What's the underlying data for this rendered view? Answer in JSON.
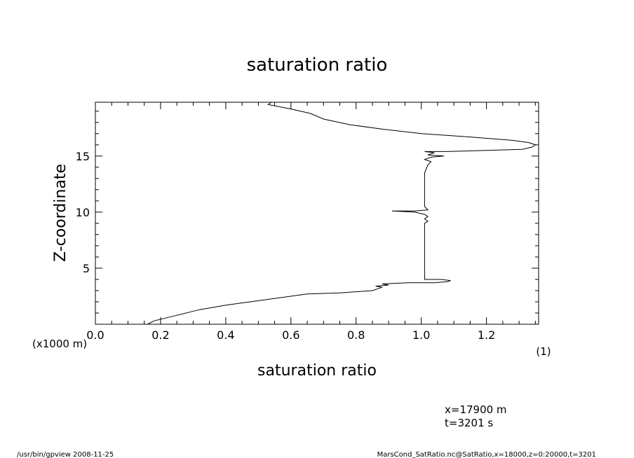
{
  "chart_data": {
    "type": "line",
    "title": "saturation ratio",
    "xlabel": "saturation ratio",
    "ylabel": "Z-coordinate",
    "x_unit": "(1)",
    "y_unit": "(x1000 m)",
    "xlim": [
      0.0,
      1.36
    ],
    "ylim": [
      0,
      19.8
    ],
    "x_ticks": [
      0.0,
      0.2,
      0.4,
      0.6,
      0.8,
      1.0,
      1.2
    ],
    "x_tick_labels": [
      "0.0",
      "0.2",
      "0.4",
      "0.6",
      "0.8",
      "1.0",
      "1.2"
    ],
    "y_ticks": [
      5,
      10,
      15
    ],
    "y_tick_labels": [
      "5",
      "10",
      "15"
    ],
    "grid": false,
    "series": [
      {
        "points": [
          [
            0.16,
            0.0
          ],
          [
            0.18,
            0.3
          ],
          [
            0.25,
            0.8
          ],
          [
            0.32,
            1.3
          ],
          [
            0.4,
            1.7
          ],
          [
            0.5,
            2.1
          ],
          [
            0.6,
            2.5
          ],
          [
            0.65,
            2.7
          ],
          [
            0.75,
            2.8
          ],
          [
            0.85,
            3.0
          ],
          [
            0.88,
            3.3
          ],
          [
            0.86,
            3.4
          ],
          [
            0.9,
            3.5
          ],
          [
            0.88,
            3.6
          ],
          [
            0.96,
            3.7
          ],
          [
            1.04,
            3.7
          ],
          [
            1.08,
            3.8
          ],
          [
            1.09,
            3.9
          ],
          [
            1.06,
            4.0
          ],
          [
            1.01,
            4.0
          ],
          [
            1.01,
            5.0
          ],
          [
            1.01,
            6.0
          ],
          [
            1.01,
            7.0
          ],
          [
            1.01,
            8.0
          ],
          [
            1.01,
            9.0
          ],
          [
            1.02,
            9.2
          ],
          [
            1.01,
            9.4
          ],
          [
            1.02,
            9.6
          ],
          [
            1.01,
            9.8
          ],
          [
            0.98,
            10.0
          ],
          [
            0.91,
            10.1
          ],
          [
            0.98,
            10.1
          ],
          [
            1.02,
            10.2
          ],
          [
            1.01,
            10.5
          ],
          [
            1.01,
            11.5
          ],
          [
            1.01,
            12.5
          ],
          [
            1.01,
            13.5
          ],
          [
            1.02,
            14.2
          ],
          [
            1.03,
            14.5
          ],
          [
            1.01,
            14.7
          ],
          [
            1.03,
            14.9
          ],
          [
            1.07,
            15.0
          ],
          [
            1.02,
            15.1
          ],
          [
            1.04,
            15.3
          ],
          [
            1.01,
            15.4
          ],
          [
            1.08,
            15.4
          ],
          [
            1.2,
            15.5
          ],
          [
            1.31,
            15.6
          ],
          [
            1.34,
            15.8
          ],
          [
            1.35,
            16.0
          ],
          [
            1.33,
            16.2
          ],
          [
            1.28,
            16.4
          ],
          [
            1.15,
            16.7
          ],
          [
            1.0,
            17.0
          ],
          [
            0.88,
            17.4
          ],
          [
            0.78,
            17.8
          ],
          [
            0.7,
            18.3
          ],
          [
            0.66,
            18.8
          ],
          [
            0.6,
            19.2
          ],
          [
            0.53,
            19.6
          ],
          [
            0.54,
            19.8
          ]
        ]
      }
    ]
  },
  "annotations": {
    "position_x": "x=17900  m",
    "time": "t=3201  s"
  },
  "footer": {
    "program": "/usr/bin/gpview   2008-11-25",
    "source": "MarsCond_SatRatio.nc@SatRatio,x=18000,z=0:20000,t=3201"
  }
}
